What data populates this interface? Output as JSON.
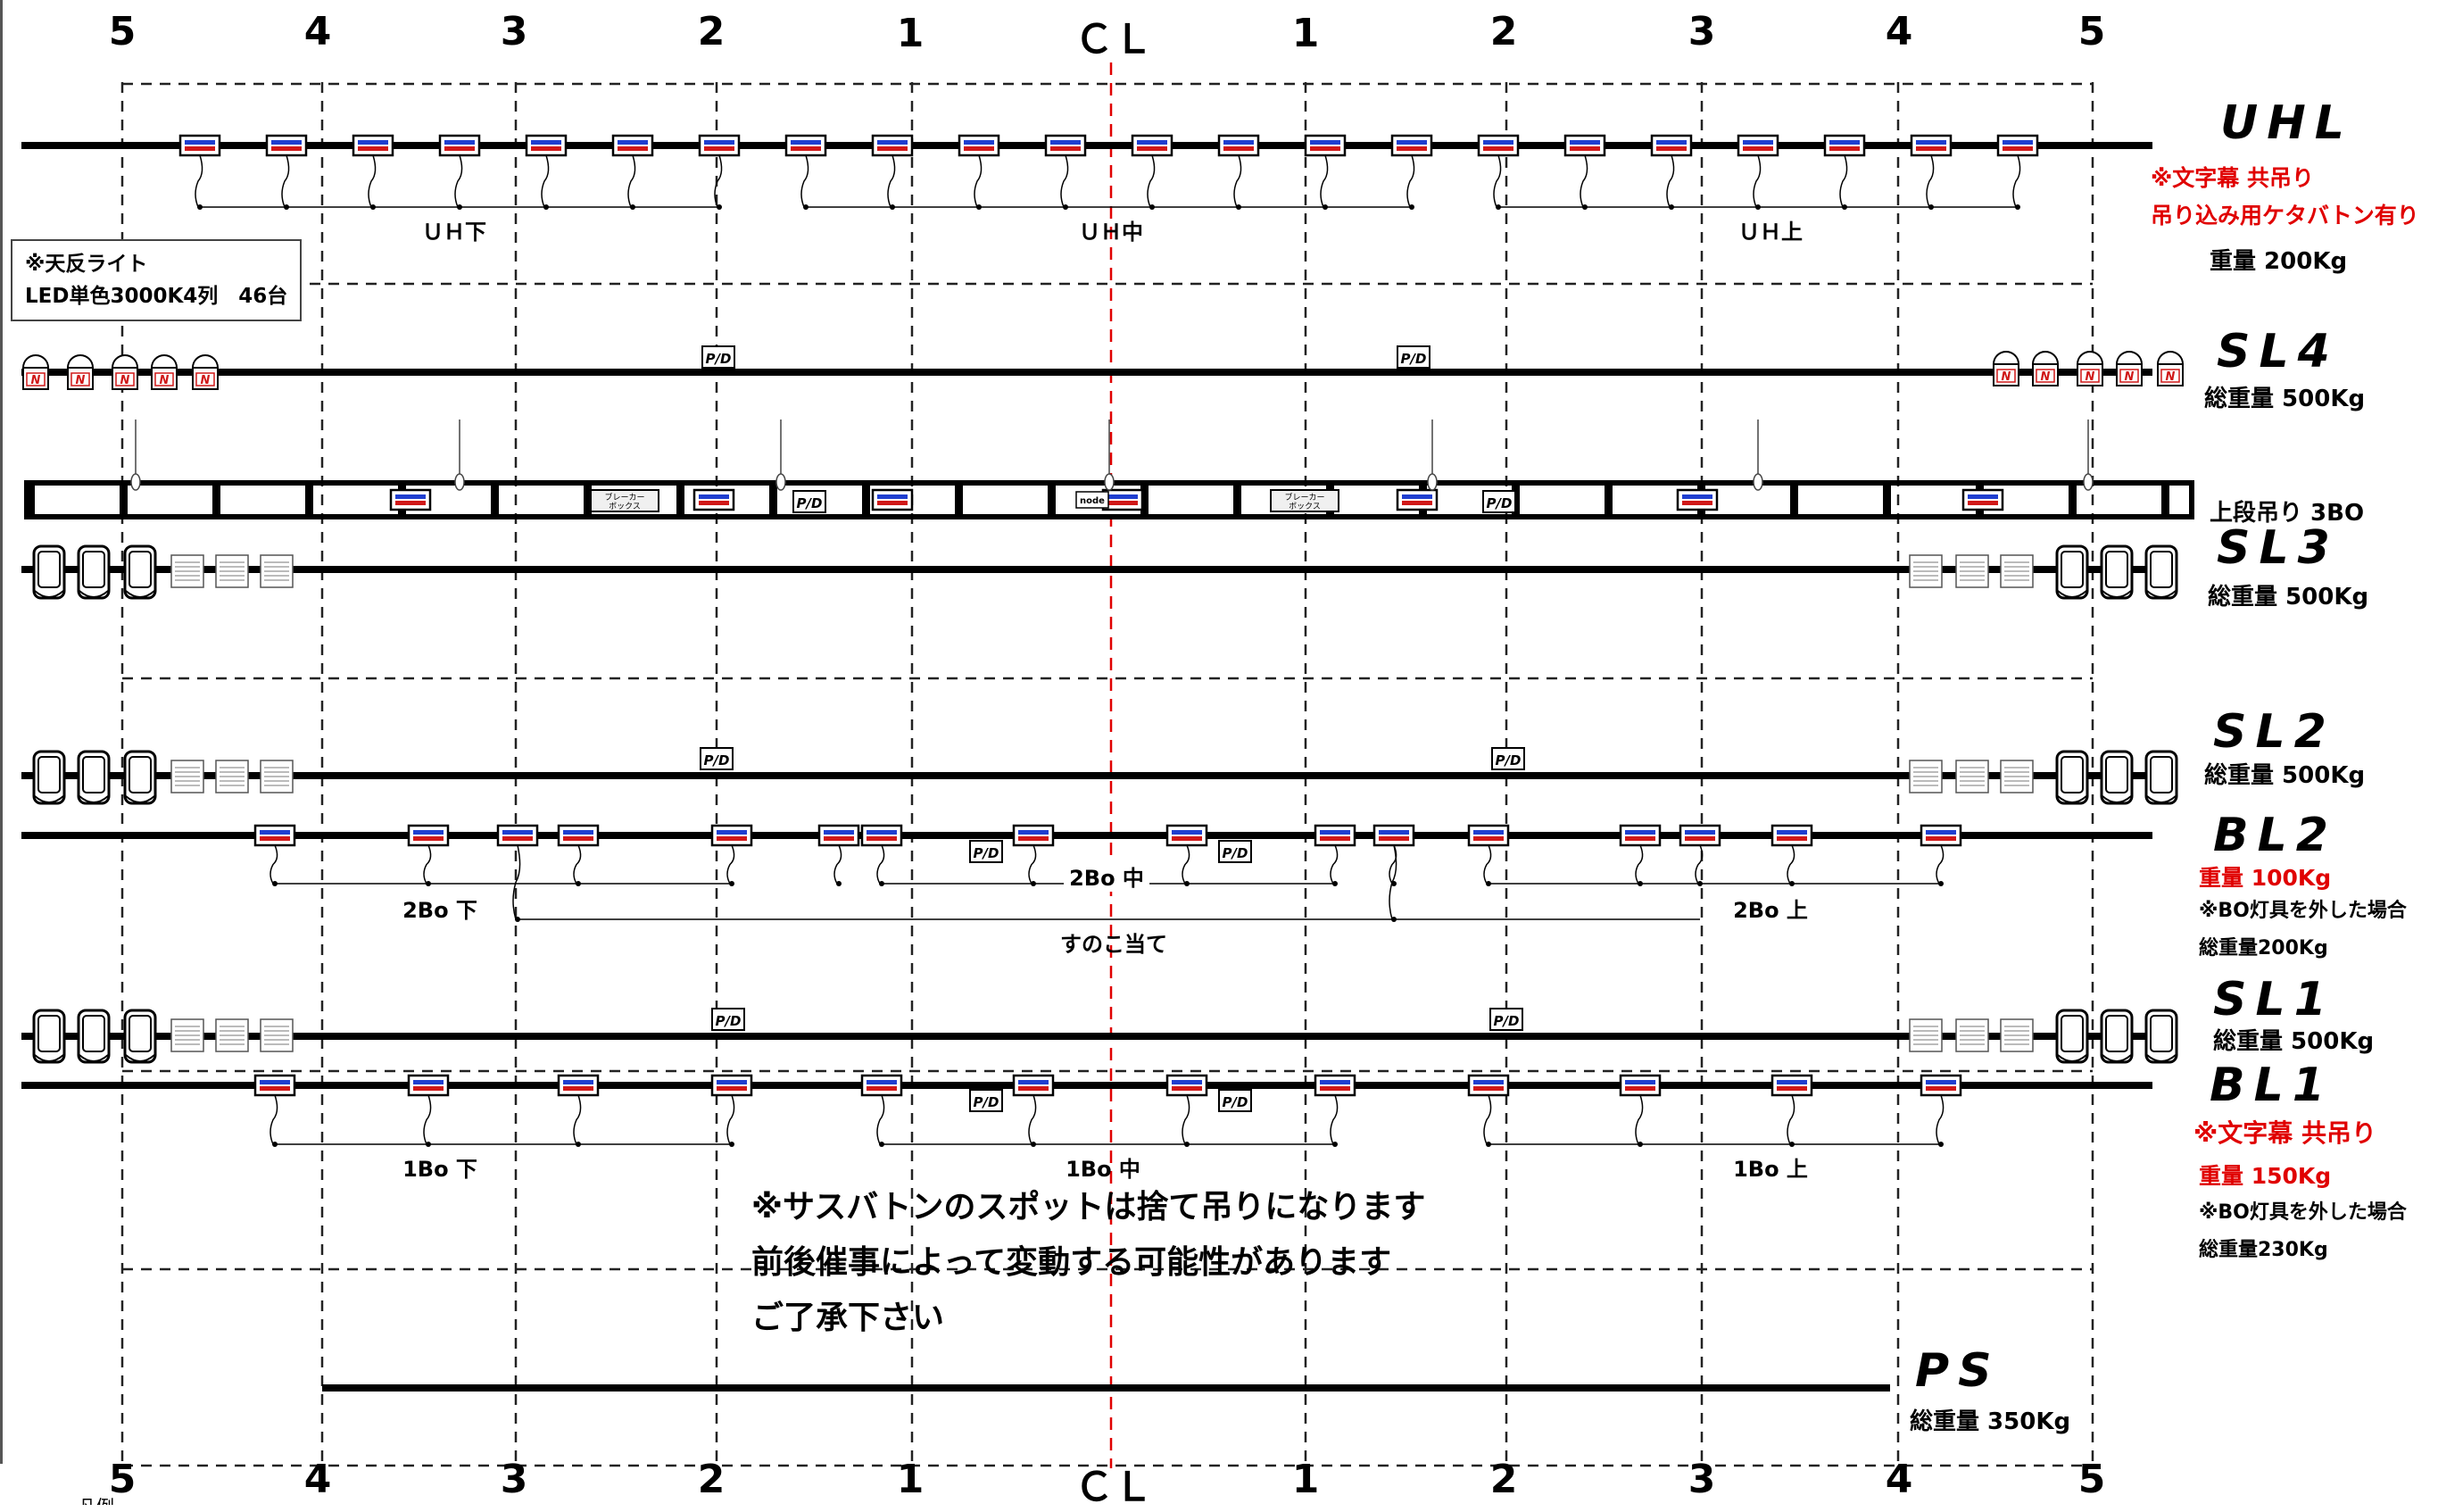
{
  "axis_top": [
    "5",
    "4",
    "3",
    "2",
    "1",
    "ＣＬ",
    "1",
    "2",
    "3",
    "4",
    "5"
  ],
  "axis_bottom": [
    "5",
    "4",
    "3",
    "2",
    "1",
    "ＣＬ",
    "1",
    "2",
    "3",
    "4",
    "5"
  ],
  "ceiling_note": {
    "line1": "※天反ライト",
    "line2": "LED単色3000K4列　46台"
  },
  "battens": {
    "uhl": {
      "name": "UHL",
      "note1": "※文字幕 共吊り",
      "note2": "吊り込み用ケタバトン有り",
      "weight": "重量 200Kg",
      "groups": [
        "ＵＨ下",
        "ＵＨ中",
        "ＵＨ上"
      ]
    },
    "sl4": {
      "name": "SL4",
      "weight": "総重量 500Kg"
    },
    "upper": {
      "label": "上段吊り 3BO",
      "breaker": "ブレーカー",
      "breaker2": "ボックス",
      "node": "node"
    },
    "sl3": {
      "name": "SL3",
      "weight": "総重量 500Kg"
    },
    "sl2": {
      "name": "SL2",
      "weight": "総重量 500Kg"
    },
    "bl2": {
      "name": "BL2",
      "weight": "重量 100Kg",
      "note": "※BO灯具を外した場合",
      "weight2": "総重量200Kg",
      "groups": [
        "2Bo 下",
        "2Bo 中",
        "2Bo 上"
      ],
      "extra": "すのこ当て"
    },
    "sl1": {
      "name": "SL1",
      "weight": "総重量 500Kg"
    },
    "bl1": {
      "name": "BL1",
      "note1": "※文字幕 共吊り",
      "weight": "重量 150Kg",
      "note": "※BO灯具を外した場合",
      "weight2": "総重量230Kg",
      "groups": [
        "1Bo 下",
        "1Bo 中",
        "1Bo 上"
      ]
    },
    "ps": {
      "name": "PS",
      "weight": "総重量 350Kg"
    }
  },
  "notice": {
    "line1": "※サスバトンのスポットは捨て吊りになります",
    "line2": "前後催事によって変動する可能性があります",
    "line3": "ご了承下さい"
  },
  "pd_label": "P/D",
  "legend_fragment": "凡例",
  "colors": {
    "cl_line": "#e00000",
    "note_red": "#e00000",
    "fixture_blue": "#1f3fd0",
    "fixture_red": "#d01818"
  }
}
